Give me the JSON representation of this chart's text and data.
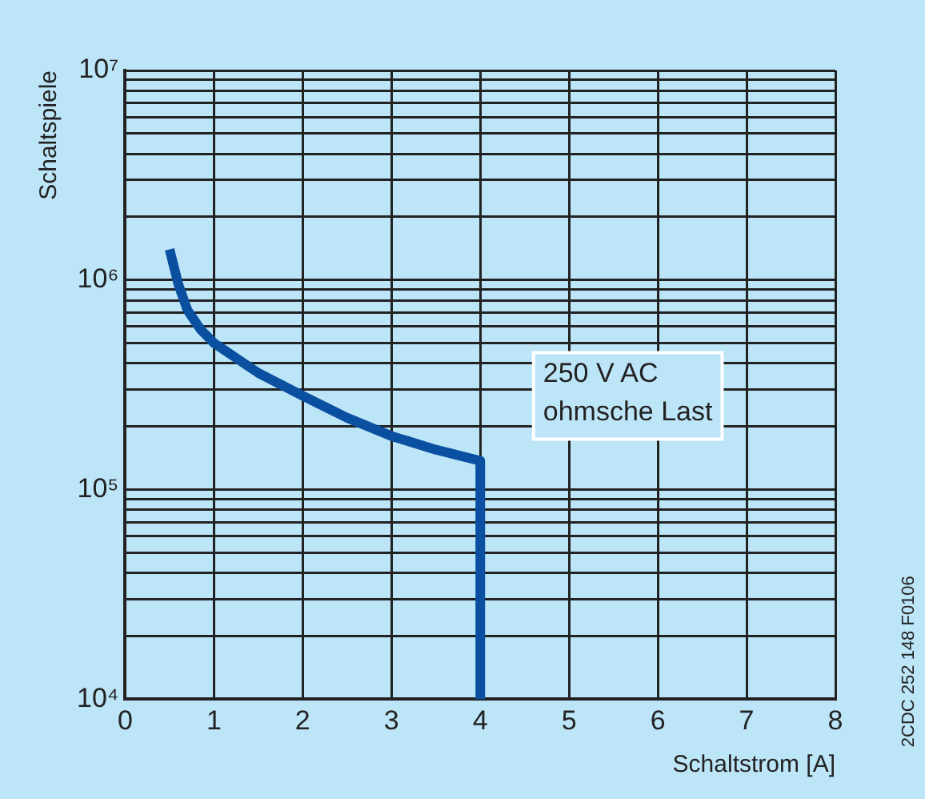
{
  "chart_data": {
    "type": "line",
    "xlabel": "Schaltstrom [A]",
    "ylabel": "Schaltspiele",
    "annotations": [
      "250 V AC\nohmsche Last",
      "2CDC 252 148 F0106"
    ],
    "log": "y",
    "grid": true,
    "marker": "none",
    "line_style": "solid",
    "xlim": [
      0,
      8
    ],
    "xticks": [
      0,
      1,
      2,
      3,
      4,
      5,
      6,
      7,
      8
    ],
    "ylim": [
      10000,
      10000000
    ],
    "yticks": [
      {
        "value": 10000,
        "label": "10⁴"
      },
      {
        "value": 20000,
        "label": null
      },
      {
        "value": 30000,
        "label": null
      },
      {
        "value": 40000,
        "label": null
      },
      {
        "value": 50000,
        "label": null
      },
      {
        "value": 60000,
        "label": null
      },
      {
        "value": 70000,
        "label": null
      },
      {
        "value": 80000,
        "label": null
      },
      {
        "value": 90000,
        "label": null
      },
      {
        "value": 100000,
        "label": "10⁵"
      },
      {
        "value": 200000,
        "label": null
      },
      {
        "value": 300000,
        "label": null
      },
      {
        "value": 400000,
        "label": null
      },
      {
        "value": 500000,
        "label": null
      },
      {
        "value": 600000,
        "label": null
      },
      {
        "value": 700000,
        "label": null
      },
      {
        "value": 800000,
        "label": null
      },
      {
        "value": 900000,
        "label": null
      },
      {
        "value": 1000000,
        "label": "10⁶"
      },
      {
        "value": 2000000,
        "label": null
      },
      {
        "value": 3000000,
        "label": null
      },
      {
        "value": 4000000,
        "label": null
      },
      {
        "value": 5000000,
        "label": null
      },
      {
        "value": 6000000,
        "label": null
      },
      {
        "value": 7000000,
        "label": null
      },
      {
        "value": 8000000,
        "label": null
      },
      {
        "value": 9000000,
        "label": null
      },
      {
        "value": 10000000,
        "label": "10⁷"
      }
    ],
    "series": [
      {
        "color": "#0a4fa0",
        "x": [
          0.5,
          0.6,
          0.7,
          0.85,
          1,
          1.5,
          2,
          2.5,
          3,
          3.5,
          4,
          4
        ],
        "values": [
          1400000,
          950000,
          720000,
          580000,
          500000,
          360000,
          280000,
          220000,
          180000,
          155000,
          137000,
          10000
        ]
      }
    ]
  }
}
